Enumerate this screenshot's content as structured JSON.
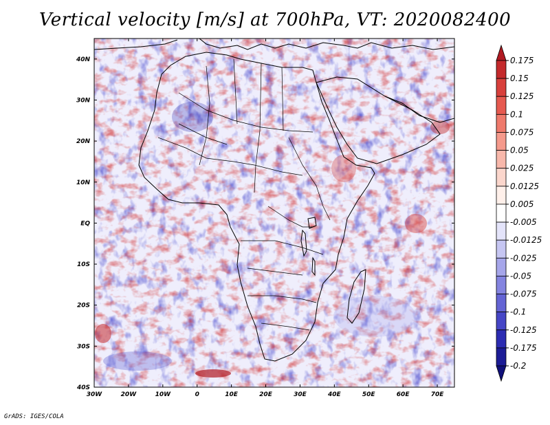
{
  "title": "Vertical velocity [m/s] at 700hPa, VT: 2020082400",
  "credit": "GrADS: IGES/COLA",
  "map": {
    "lon_range": [
      -30,
      75
    ],
    "lat_range": [
      -40,
      45
    ],
    "x_ticks": [
      "30W",
      "20W",
      "10W",
      "0",
      "10E",
      "20E",
      "30E",
      "40E",
      "50E",
      "60E",
      "70E"
    ],
    "x_tick_values": [
      -30,
      -20,
      -10,
      0,
      10,
      20,
      30,
      40,
      50,
      60,
      70
    ],
    "y_ticks": [
      "40N",
      "30N",
      "20N",
      "10N",
      "EQ",
      "10S",
      "20S",
      "30S",
      "40S"
    ],
    "y_tick_values": [
      40,
      30,
      20,
      10,
      0,
      -10,
      -20,
      -30,
      -40
    ]
  },
  "colorbar": {
    "levels": [
      "0.175",
      "0.15",
      "0.125",
      "0.1",
      "0.075",
      "0.05",
      "0.025",
      "0.0125",
      "0.005",
      "-0.005",
      "-0.0125",
      "-0.025",
      "-0.05",
      "-0.075",
      "-0.1",
      "-0.125",
      "-0.175",
      "-0.2"
    ],
    "colors": [
      "#b01a22",
      "#c42a2c",
      "#d8403c",
      "#e65a50",
      "#ef7a6c",
      "#f59a8c",
      "#f8b8ab",
      "#fbd6cc",
      "#fff0ea",
      "#ffffff",
      "#e4e4fa",
      "#c6c6f2",
      "#a6a6ea",
      "#8484e0",
      "#6464d4",
      "#4646c6",
      "#2c2cb2",
      "#1c1c96",
      "#10107a"
    ]
  }
}
